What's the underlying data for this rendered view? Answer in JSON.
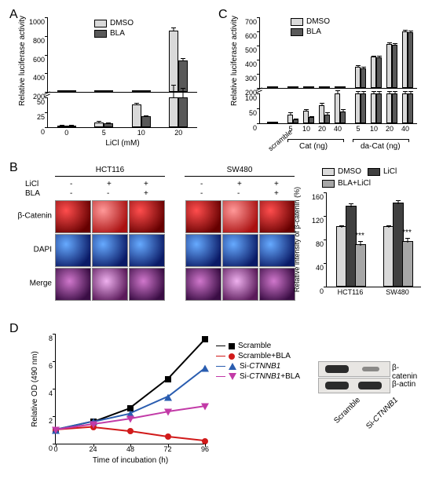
{
  "labels": {
    "A": "A",
    "B": "B",
    "C": "C",
    "D": "D"
  },
  "panelA": {
    "type": "bar",
    "ylabel": "Relative luciferase activity",
    "xlabel": "LiCl (mM)",
    "legend": {
      "a": "DMSO",
      "b": "BLA"
    },
    "colors": {
      "a": "#d9d9d9",
      "b": "#595959"
    },
    "upper": {
      "ylim": [
        200,
        1000
      ],
      "yticks": [
        200,
        400,
        600,
        800,
        1000
      ]
    },
    "lower": {
      "ylim": [
        0,
        50
      ],
      "yticks": [
        0,
        25,
        50
      ]
    },
    "categories": [
      "0",
      "5",
      "10",
      "20"
    ],
    "series": {
      "a": [
        2,
        8,
        38,
        860
      ],
      "b": [
        2,
        6,
        18,
        540
      ]
    },
    "err": {
      "a": [
        1,
        1,
        2,
        20
      ],
      "b": [
        1,
        1,
        1,
        15
      ]
    }
  },
  "panelC": {
    "type": "bar",
    "ylabel": "Relative luciferase activity",
    "legend": {
      "a": "DMSO",
      "b": "BLA"
    },
    "colors": {
      "a": "#d9d9d9",
      "b": "#595959"
    },
    "upper": {
      "ylim": [
        200,
        700
      ],
      "yticks": [
        200,
        300,
        400,
        500,
        600,
        700
      ]
    },
    "lower": {
      "ylim": [
        0,
        100
      ],
      "yticks": [
        0,
        50,
        100
      ]
    },
    "categories": [
      "scramble",
      "5",
      "10",
      "20",
      "40",
      "5",
      "10",
      "20",
      "40"
    ],
    "group_labels": {
      "cat": "Cat (ng)",
      "dacat": "da-Cat (ng)"
    },
    "series": {
      "a": [
        2,
        30,
        42,
        60,
        100,
        350,
        420,
        510,
        600
      ],
      "b": [
        2,
        12,
        20,
        30,
        40,
        340,
        415,
        505,
        595
      ]
    },
    "err": {
      "a": [
        1,
        3,
        4,
        5,
        8,
        5,
        5,
        5,
        5
      ],
      "b": [
        1,
        2,
        2,
        3,
        4,
        5,
        5,
        5,
        5
      ]
    }
  },
  "panelB": {
    "cell_lines": [
      "HCT116",
      "SW480"
    ],
    "treat_rows": [
      "LiCl",
      "BLA"
    ],
    "treat_cols": [
      [
        "-",
        "+",
        "+"
      ],
      [
        "-",
        "-",
        "+"
      ]
    ],
    "row_labels": [
      "β-Catenin",
      "DAPI",
      "Merge"
    ],
    "chart": {
      "type": "bar",
      "ylabel": "Relative intensity of β-catenin (%)",
      "legend": {
        "a": "DMSO",
        "b": "LiCl",
        "c": "BLA+LiCl"
      },
      "colors": {
        "a": "#d9d9d9",
        "b": "#404040",
        "c": "#a6a6a6"
      },
      "ylim": [
        0,
        160
      ],
      "yticks": [
        0,
        40,
        80,
        120,
        160
      ],
      "categories": [
        "HCT116",
        "SW480"
      ],
      "series": {
        "a": [
          100,
          100
        ],
        "b": [
          135,
          140
        ],
        "c": [
          70,
          75
        ]
      },
      "err": {
        "a": [
          3,
          3
        ],
        "b": [
          5,
          6
        ],
        "c": [
          6,
          6
        ]
      },
      "sig": "***"
    }
  },
  "panelD": {
    "type": "line",
    "xlabel": "Time of incubation (h)",
    "ylabel": "Relative OD (490 nm)",
    "xlim": [
      0,
      96
    ],
    "xticks": [
      0,
      24,
      48,
      72,
      96
    ],
    "ylim": [
      0,
      8
    ],
    "yticks": [
      0,
      2,
      4,
      6,
      8
    ],
    "series": [
      {
        "name": "Scramble",
        "color": "#000000",
        "marker": "square",
        "y": [
          1.0,
          1.6,
          2.6,
          4.7,
          7.6
        ]
      },
      {
        "name": "Scramble+BLA",
        "color": "#d11a1a",
        "marker": "circle",
        "y": [
          1.0,
          1.2,
          0.9,
          0.5,
          0.2
        ]
      },
      {
        "name": "Si-CTNNB1",
        "color": "#2a5db0",
        "marker": "triangle-up",
        "y": [
          1.0,
          1.6,
          2.2,
          3.4,
          5.5
        ]
      },
      {
        "name": "Si-CTNNB1+BLA",
        "color": "#c23aa7",
        "marker": "triangle-down",
        "y": [
          1.0,
          1.4,
          1.8,
          2.3,
          2.7
        ]
      }
    ],
    "legend_style": {
      "gene_italic": "CTNNB1"
    },
    "blot": {
      "rows": [
        "β-catenin",
        "β-actin"
      ],
      "lanes": [
        "Scramble",
        "Si-CTNNB1"
      ],
      "intensity": {
        "β-catenin": [
          1.0,
          0.2
        ],
        "β-actin": [
          1.0,
          1.0
        ]
      }
    }
  }
}
